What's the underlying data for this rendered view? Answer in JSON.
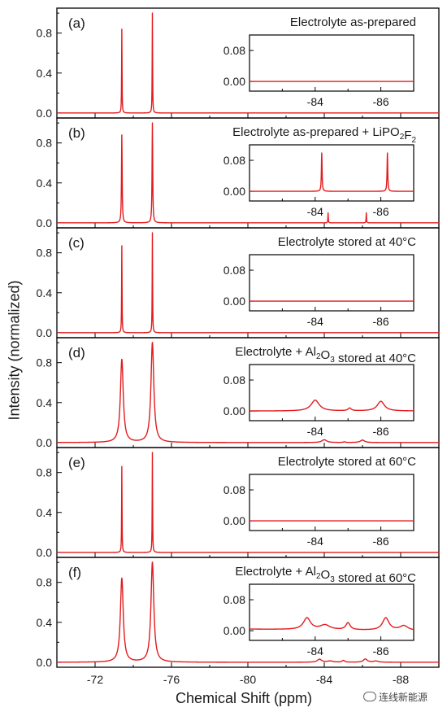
{
  "chart_data": {
    "type": "line",
    "xlabel": "Chemical Shift (ppm)",
    "ylabel": "Intensity (normalized)",
    "xlim": [
      -70,
      -90
    ],
    "xticks": [
      -72,
      -76,
      -80,
      -84,
      -88
    ],
    "ylim": [
      -0.05,
      1.05
    ],
    "yticks": [
      0.0,
      0.4,
      0.8
    ],
    "ytick_labels": [
      "0.0",
      "0.4",
      "0.8"
    ],
    "inset_xlim": [
      -82,
      -87
    ],
    "inset_xticks": [
      -84,
      -86
    ],
    "inset_ylim": [
      -0.025,
      0.12
    ],
    "inset_yticks": [
      0.0,
      0.08
    ],
    "inset_ytick_labels": [
      "0.00",
      "0.08"
    ],
    "line_color": "#e41a1c",
    "panels": [
      {
        "label": "(a)",
        "title_parts": [
          {
            "t": "Electrolyte as-prepared"
          }
        ],
        "peaks": [
          {
            "center": -73.4,
            "height": 0.84,
            "width": 0.012
          },
          {
            "center": -75.0,
            "height": 1.0,
            "width": 0.012
          }
        ],
        "inset_peaks": []
      },
      {
        "label": "(b)",
        "title_parts": [
          {
            "t": "Electrolyte as-prepared + LiPO"
          },
          {
            "t": "2",
            "sub": true
          },
          {
            "t": "F"
          },
          {
            "t": "2",
            "sub": true
          }
        ],
        "peaks": [
          {
            "center": -73.4,
            "height": 0.88,
            "width": 0.02
          },
          {
            "center": -75.0,
            "height": 1.0,
            "width": 0.02
          },
          {
            "center": -84.2,
            "height": 0.1,
            "width": 0.012
          },
          {
            "center": -86.2,
            "height": 0.1,
            "width": 0.012
          }
        ],
        "inset_peaks": [
          {
            "center": -84.2,
            "height": 0.1,
            "width": 0.012
          },
          {
            "center": -86.2,
            "height": 0.1,
            "width": 0.012
          }
        ]
      },
      {
        "label": "(c)",
        "title_parts": [
          {
            "t": "Electrolyte stored at 40°C"
          }
        ],
        "peaks": [
          {
            "center": -73.4,
            "height": 0.87,
            "width": 0.012
          },
          {
            "center": -75.0,
            "height": 1.0,
            "width": 0.012
          }
        ],
        "inset_peaks": []
      },
      {
        "label": "(d)",
        "title_parts": [
          {
            "t": "Electrolyte + Al"
          },
          {
            "t": "2",
            "sub": true
          },
          {
            "t": "O"
          },
          {
            "t": "3",
            "sub": true
          },
          {
            "t": " stored at 40°C"
          }
        ],
        "peaks": [
          {
            "center": -73.4,
            "height": 0.83,
            "width": 0.09
          },
          {
            "center": -75.0,
            "height": 1.0,
            "width": 0.09
          },
          {
            "center": -84.0,
            "height": 0.028,
            "width": 0.15
          },
          {
            "center": -85.05,
            "height": 0.007,
            "width": 0.06
          },
          {
            "center": -86.0,
            "height": 0.025,
            "width": 0.13
          }
        ],
        "inset_peaks": [
          {
            "center": -84.0,
            "height": 0.028,
            "width": 0.15
          },
          {
            "center": -85.05,
            "height": 0.007,
            "width": 0.06
          },
          {
            "center": -86.0,
            "height": 0.025,
            "width": 0.13
          }
        ]
      },
      {
        "label": "(e)",
        "title_parts": [
          {
            "t": "Electrolyte stored at 60°C"
          }
        ],
        "peaks": [
          {
            "center": -73.4,
            "height": 0.86,
            "width": 0.012
          },
          {
            "center": -75.0,
            "height": 1.0,
            "width": 0.012
          }
        ],
        "inset_peaks": []
      },
      {
        "label": "(f)",
        "title_parts": [
          {
            "t": "Electrolyte + Al"
          },
          {
            "t": "2",
            "sub": true
          },
          {
            "t": "O"
          },
          {
            "t": "3",
            "sub": true
          },
          {
            "t": " stored at 60°C"
          }
        ],
        "peaks": [
          {
            "center": -73.4,
            "height": 0.84,
            "width": 0.09
          },
          {
            "center": -75.0,
            "height": 1.0,
            "width": 0.09
          },
          {
            "center": -83.75,
            "height": 0.03,
            "width": 0.13
          },
          {
            "center": -84.3,
            "height": 0.012,
            "width": 0.18
          },
          {
            "center": -85.0,
            "height": 0.018,
            "width": 0.08
          },
          {
            "center": -86.15,
            "height": 0.032,
            "width": 0.12
          },
          {
            "center": -86.7,
            "height": 0.012,
            "width": 0.15
          }
        ],
        "inset_peaks": [
          {
            "center": -83.75,
            "height": 0.03,
            "width": 0.13
          },
          {
            "center": -84.3,
            "height": 0.012,
            "width": 0.18
          },
          {
            "center": -85.0,
            "height": 0.018,
            "width": 0.08
          },
          {
            "center": -86.15,
            "height": 0.032,
            "width": 0.12
          },
          {
            "center": -86.7,
            "height": 0.012,
            "width": 0.15
          }
        ],
        "inset_baseline_slope": 0.004
      }
    ]
  },
  "watermark": "连线新能源"
}
